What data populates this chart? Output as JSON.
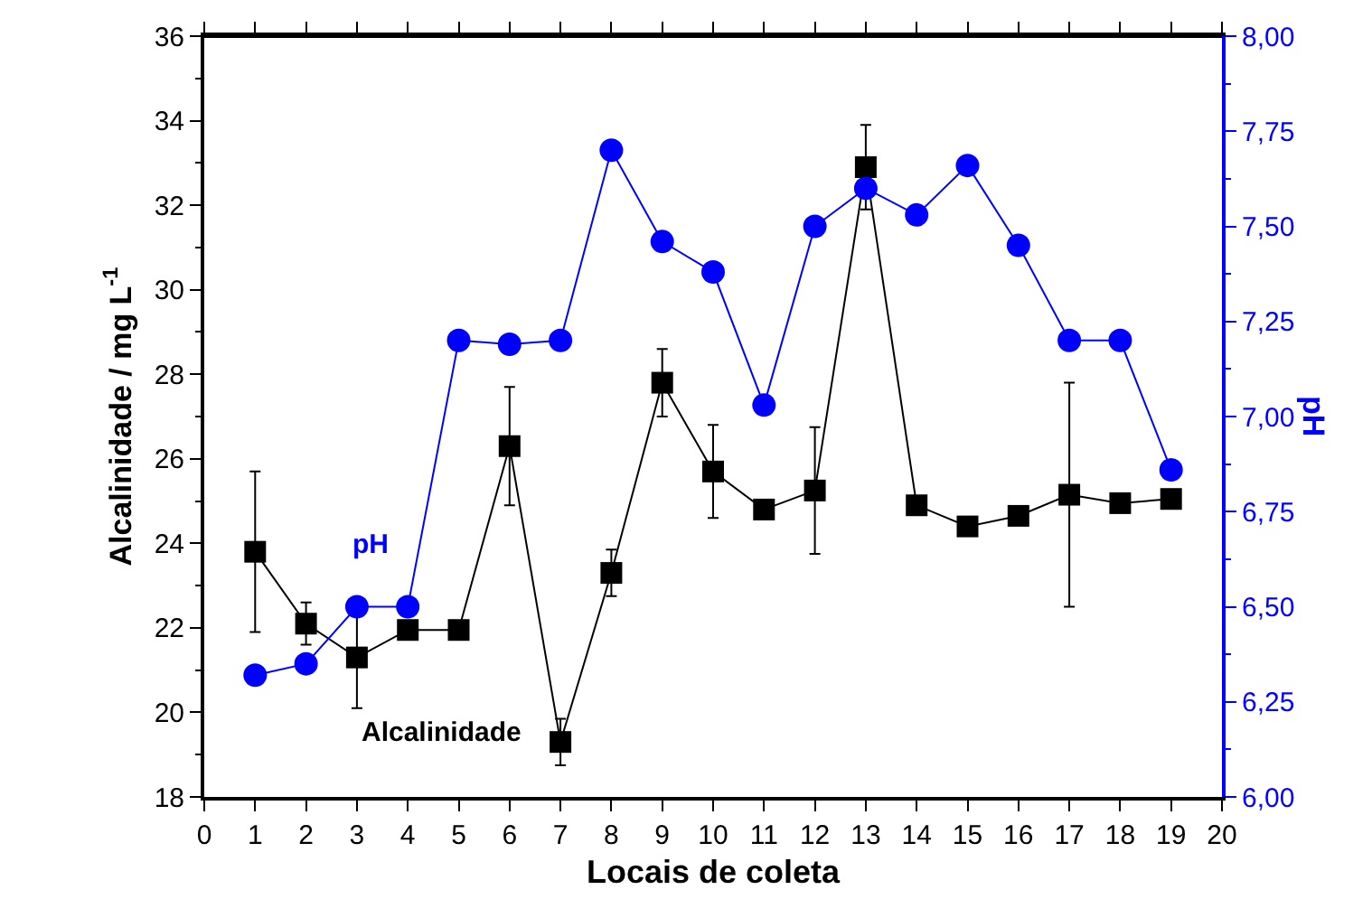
{
  "chart_data": {
    "type": "line",
    "xlabel": "Locais de coleta",
    "ylabel": "Alcalinidade / mg L$^{-1}$",
    "y2label": "pH",
    "x": [
      1,
      2,
      3,
      4,
      5,
      6,
      7,
      8,
      9,
      10,
      11,
      12,
      13,
      14,
      15,
      16,
      17,
      18,
      19
    ],
    "xlim": [
      0,
      20
    ],
    "xticks": [
      0,
      1,
      2,
      3,
      4,
      5,
      6,
      7,
      8,
      9,
      10,
      11,
      12,
      13,
      14,
      15,
      16,
      17,
      18,
      19,
      20
    ],
    "ylim": [
      18,
      36
    ],
    "yticks": [
      18,
      20,
      22,
      24,
      26,
      28,
      30,
      32,
      34,
      36
    ],
    "y2lim": [
      6,
      8
    ],
    "y2ticks": [
      {
        "value": 6,
        "label": "6,00"
      },
      {
        "value": 6.25,
        "label": "6,25"
      },
      {
        "value": 6.5,
        "label": "6,50"
      },
      {
        "value": 6.75,
        "label": "6,75"
      },
      {
        "value": 7,
        "label": "7,00"
      },
      {
        "value": 7.25,
        "label": "7,25"
      },
      {
        "value": 7.5,
        "label": "7,50"
      },
      {
        "value": 7.75,
        "label": "7,75"
      },
      {
        "value": 8,
        "label": "8,00"
      }
    ],
    "legend": false,
    "line_style": "solid",
    "series": [
      {
        "name": "Alcalinidade",
        "color": "#000000",
        "marker": "square",
        "values": [
          23.8,
          22.1,
          21.3,
          21.95,
          21.95,
          26.3,
          19.3,
          23.3,
          27.8,
          25.7,
          24.8,
          25.25,
          32.9,
          24.9,
          24.4,
          24.65,
          25.15,
          24.95,
          25.05
        ],
        "errors": [
          1.9,
          0.5,
          1.2,
          null,
          null,
          1.4,
          0.55,
          0.55,
          0.8,
          1.1,
          null,
          1.5,
          1.0,
          null,
          null,
          null,
          2.65,
          null,
          null
        ]
      },
      {
        "name": "pH",
        "color": "#0000ff",
        "marker": "circle",
        "axis": "y2",
        "values": [
          6.32,
          6.35,
          6.5,
          6.5,
          7.2,
          7.19,
          7.2,
          7.7,
          7.46,
          7.38,
          7.03,
          7.5,
          7.6,
          7.53,
          7.66,
          7.45,
          7.2,
          7.2,
          6.86
        ]
      }
    ]
  }
}
